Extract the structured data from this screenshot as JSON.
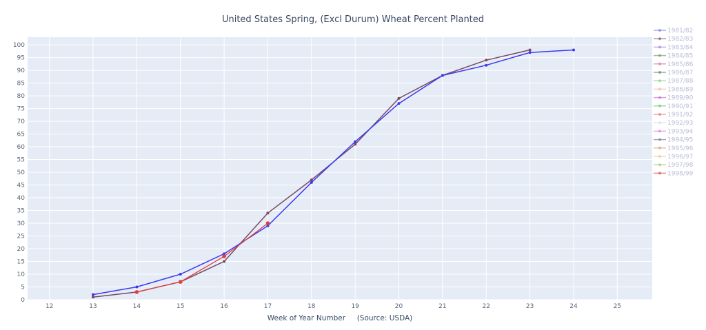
{
  "chart_data": {
    "type": "line",
    "title": "United States Spring, (Excl Durum) Wheat Percent Planted",
    "xlabel": "Week of Year Number     (Source: USDA)",
    "ylabel": "",
    "xlim": [
      11.5,
      25.8
    ],
    "ylim": [
      0,
      103
    ],
    "x_ticks": [
      12,
      13,
      14,
      15,
      16,
      17,
      18,
      19,
      20,
      21,
      22,
      23,
      24,
      25
    ],
    "y_ticks": [
      0,
      5,
      10,
      15,
      20,
      25,
      30,
      35,
      40,
      45,
      50,
      55,
      60,
      65,
      70,
      75,
      80,
      85,
      90,
      95,
      100
    ],
    "grid": true,
    "legend_position": "right",
    "series": [
      {
        "name": "1981/82",
        "color": "#6f76e8",
        "x": [],
        "y": []
      },
      {
        "name": "1982/83",
        "color": "#7b4a63",
        "x": [
          13,
          14,
          15,
          16,
          17,
          18,
          19,
          20,
          21,
          22,
          23
        ],
        "y": [
          1,
          3,
          7,
          15,
          34,
          47,
          61,
          79,
          88,
          94,
          98
        ]
      },
      {
        "name": "1983/84",
        "color": "#9a7be0",
        "x": [],
        "y": []
      },
      {
        "name": "1984/85",
        "color": "#6a8a6a",
        "x": [],
        "y": []
      },
      {
        "name": "1985/86",
        "color": "#e060a0",
        "x": [],
        "y": []
      },
      {
        "name": "1986/87",
        "color": "#5a7a5a",
        "x": [],
        "y": []
      },
      {
        "name": "1987/88",
        "color": "#7ad06a",
        "x": [],
        "y": []
      },
      {
        "name": "1988/89",
        "color": "#f0b0a0",
        "x": [],
        "y": []
      },
      {
        "name": "1989/90",
        "color": "#c060d0",
        "x": [],
        "y": []
      },
      {
        "name": "1990/91",
        "color": "#60c060",
        "x": [],
        "y": []
      },
      {
        "name": "1991/92",
        "color": "#e07070",
        "x": [],
        "y": []
      },
      {
        "name": "1992/93",
        "color": "#d0d8f0",
        "x": [],
        "y": []
      },
      {
        "name": "1993/94",
        "color": "#e070e0",
        "x": [],
        "y": []
      },
      {
        "name": "1994/95",
        "color": "#7070a0",
        "x": [],
        "y": []
      },
      {
        "name": "1995/96",
        "color": "#e09070",
        "x": [],
        "y": []
      },
      {
        "name": "1996/97",
        "color": "#f0c080",
        "x": [],
        "y": []
      },
      {
        "name": "1997/98",
        "color": "#a0c060",
        "x": [],
        "y": []
      },
      {
        "name": "1998/99",
        "color": "#e04040",
        "x": [
          14,
          15,
          16,
          17
        ],
        "y": [
          3,
          7,
          17,
          30
        ]
      },
      {
        "name": "",
        "color": "#3a3af0",
        "x": [
          13,
          14,
          15,
          16,
          17,
          18,
          19,
          20,
          21,
          22,
          23,
          24
        ],
        "y": [
          2,
          5,
          10,
          18,
          29,
          46,
          62,
          77,
          88,
          92,
          97,
          98
        ]
      }
    ]
  }
}
